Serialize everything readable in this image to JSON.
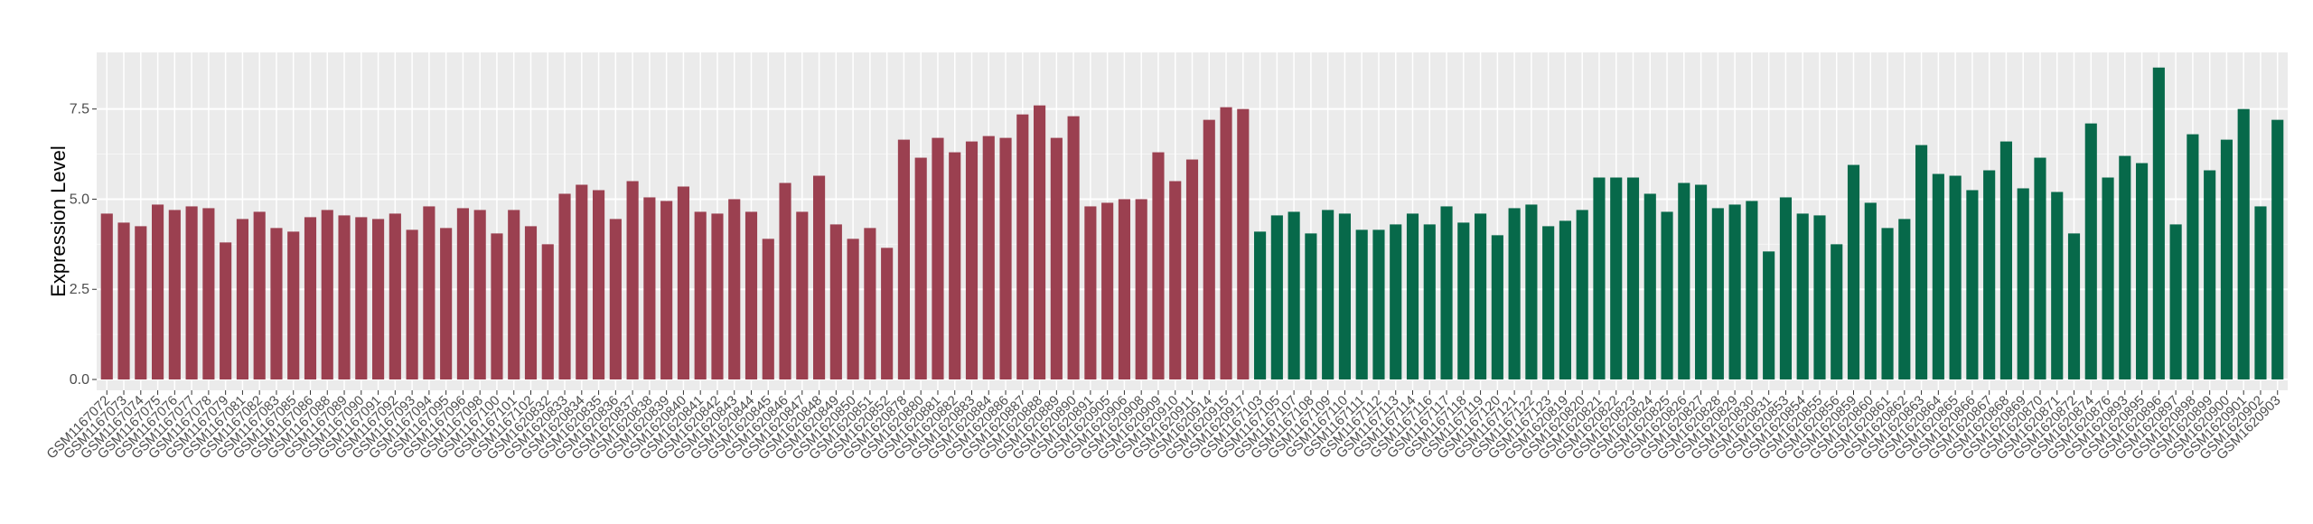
{
  "chart_data": {
    "type": "bar",
    "y_label": "Expression Level",
    "ylim": [
      -0.3,
      9.07
    ],
    "yticks": [
      {
        "value": 0,
        "label": "0.0"
      },
      {
        "value": 2.5,
        "label": "2.5"
      },
      {
        "value": 5,
        "label": "5.0"
      },
      {
        "value": 7.5,
        "label": "7.5"
      }
    ],
    "grid": true,
    "series": [
      {
        "color": "#9b4050",
        "categories": [
          "GSM1167072",
          "GSM1167073",
          "GSM1167074",
          "GSM1167075",
          "GSM1167076",
          "GSM1167077",
          "GSM1167078",
          "GSM1167079",
          "GSM1167081",
          "GSM1167082",
          "GSM1167083",
          "GSM1167085",
          "GSM1167086",
          "GSM1167088",
          "GSM1167089",
          "GSM1167090",
          "GSM1167091",
          "GSM1167092",
          "GSM1167093",
          "GSM1167094",
          "GSM1167095",
          "GSM1167096",
          "GSM1167098",
          "GSM1167100",
          "GSM1167101",
          "GSM1167102",
          "GSM1620832",
          "GSM1620833",
          "GSM1620834",
          "GSM1620835",
          "GSM1620836",
          "GSM1620837",
          "GSM1620838",
          "GSM1620839",
          "GSM1620840",
          "GSM1620841",
          "GSM1620842",
          "GSM1620843",
          "GSM1620844",
          "GSM1620845",
          "GSM1620846",
          "GSM1620847",
          "GSM1620848",
          "GSM1620849",
          "GSM1620850",
          "GSM1620851",
          "GSM1620852",
          "GSM1620878",
          "GSM1620880",
          "GSM1620881",
          "GSM1620882",
          "GSM1620883",
          "GSM1620884",
          "GSM1620886",
          "GSM1620887",
          "GSM1620888",
          "GSM1620889",
          "GSM1620890",
          "GSM1620891",
          "GSM1620905",
          "GSM1620906",
          "GSM1620908",
          "GSM1620909",
          "GSM1620910",
          "GSM1620911",
          "GSM1620914",
          "GSM1620915",
          "GSM1620917"
        ],
        "values": [
          4.6,
          4.35,
          4.25,
          4.85,
          4.7,
          4.8,
          4.75,
          3.8,
          4.45,
          4.65,
          4.2,
          4.1,
          4.5,
          4.7,
          4.55,
          4.5,
          4.45,
          4.6,
          4.15,
          4.8,
          4.2,
          4.75,
          4.7,
          4.05,
          4.7,
          4.25,
          3.75,
          5.15,
          5.4,
          5.25,
          4.45,
          5.5,
          5.05,
          4.95,
          5.35,
          4.65,
          4.6,
          5.0,
          4.65,
          3.9,
          5.45,
          4.65,
          5.65,
          4.3,
          3.9,
          4.2,
          3.65,
          6.65,
          6.15,
          6.7,
          6.3,
          6.6,
          6.75,
          6.7,
          7.35,
          7.6,
          6.7,
          7.3,
          4.8,
          4.9,
          5.0,
          5.0,
          6.3,
          5.5,
          6.1,
          7.2,
          7.55,
          7.5
        ]
      },
      {
        "color": "#07694a",
        "categories": [
          "GSM1167103",
          "GSM1167105",
          "GSM1167107",
          "GSM1167108",
          "GSM1167109",
          "GSM1167110",
          "GSM1167111",
          "GSM1167112",
          "GSM1167113",
          "GSM1167114",
          "GSM1167116",
          "GSM1167117",
          "GSM1167118",
          "GSM1167119",
          "GSM1167120",
          "GSM1167121",
          "GSM1167122",
          "GSM1167123",
          "GSM1620819",
          "GSM1620820",
          "GSM1620821",
          "GSM1620822",
          "GSM1620823",
          "GSM1620824",
          "GSM1620825",
          "GSM1620826",
          "GSM1620827",
          "GSM1620828",
          "GSM1620829",
          "GSM1620830",
          "GSM1620831",
          "GSM1620853",
          "GSM1620854",
          "GSM1620855",
          "GSM1620856",
          "GSM1620859",
          "GSM1620860",
          "GSM1620861",
          "GSM1620862",
          "GSM1620863",
          "GSM1620864",
          "GSM1620865",
          "GSM1620866",
          "GSM1620867",
          "GSM1620868",
          "GSM1620869",
          "GSM1620870",
          "GSM1620871",
          "GSM1620872",
          "GSM1620874",
          "GSM1620876",
          "GSM1620893",
          "GSM1620895",
          "GSM1620896",
          "GSM1620897",
          "GSM1620898",
          "GSM1620899",
          "GSM1620900",
          "GSM1620901",
          "GSM1620902",
          "GSM1620903"
        ],
        "values": [
          4.1,
          4.55,
          4.65,
          4.05,
          4.7,
          4.6,
          4.15,
          4.15,
          4.3,
          4.6,
          4.3,
          4.8,
          4.35,
          4.6,
          4.0,
          4.75,
          4.85,
          4.25,
          4.4,
          4.7,
          5.6,
          5.6,
          5.6,
          5.15,
          4.65,
          5.45,
          5.4,
          4.75,
          4.85,
          4.95,
          3.55,
          5.05,
          4.6,
          4.55,
          3.75,
          5.95,
          4.9,
          4.2,
          4.45,
          6.5,
          5.7,
          5.65,
          5.25,
          5.8,
          6.6,
          5.3,
          6.15,
          5.2,
          4.05,
          7.1,
          5.6,
          6.2,
          6.0,
          8.65,
          4.3,
          6.8,
          5.8,
          6.65,
          7.5,
          4.8,
          7.2
        ]
      }
    ]
  }
}
